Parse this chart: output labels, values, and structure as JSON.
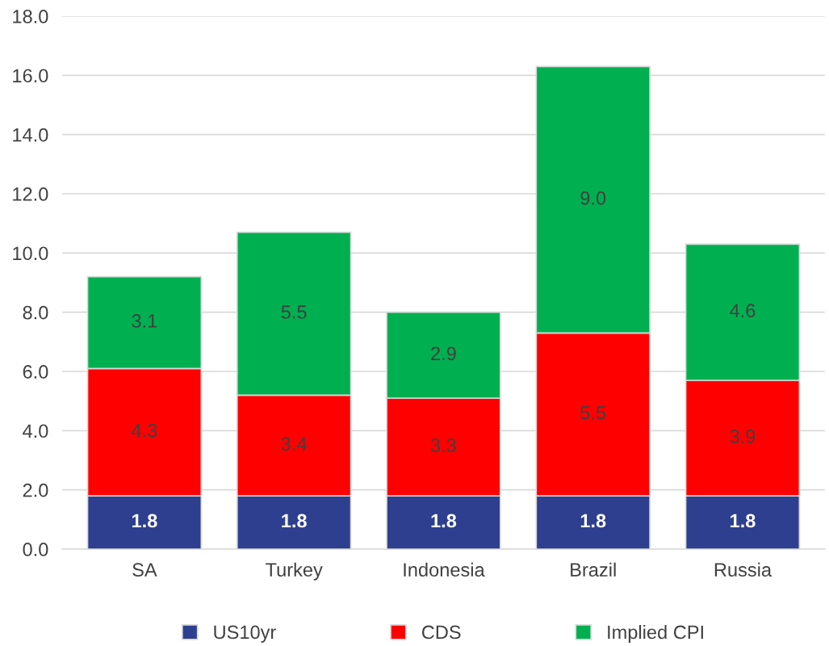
{
  "chart_data": {
    "type": "bar",
    "stacked": true,
    "categories": [
      "SA",
      "Turkey",
      "Indonesia",
      "Brazil",
      "Russia"
    ],
    "series": [
      {
        "name": "US10yr",
        "color": "#2e3f8f",
        "values": [
          1.8,
          1.8,
          1.8,
          1.8,
          1.8
        ],
        "value_labels": [
          "1.8",
          "1.8",
          "1.8",
          "1.8",
          "1.8"
        ]
      },
      {
        "name": "CDS",
        "color": "#ff0000",
        "values": [
          4.3,
          3.4,
          3.3,
          5.5,
          3.9
        ],
        "value_labels": [
          "4.3",
          "3.4",
          "3.3",
          "5.5",
          "3.9"
        ]
      },
      {
        "name": "Implied CPI",
        "color": "#00b050",
        "values": [
          3.1,
          5.5,
          2.9,
          9.0,
          4.6
        ],
        "value_labels": [
          "3.1",
          "5.5",
          "2.9",
          "9.0",
          "4.6"
        ]
      }
    ],
    "ylim": [
      0,
      18
    ],
    "yticks": [
      {
        "value": 0,
        "label": "0.0"
      },
      {
        "value": 2,
        "label": "2.0"
      },
      {
        "value": 4,
        "label": "4.0"
      },
      {
        "value": 6,
        "label": "6.0"
      },
      {
        "value": 8,
        "label": "8.0"
      },
      {
        "value": 10,
        "label": "10.0"
      },
      {
        "value": 12,
        "label": "12.0"
      },
      {
        "value": 14,
        "label": "14.0"
      },
      {
        "value": 16,
        "label": "16.0"
      },
      {
        "value": 18,
        "label": "18.0"
      }
    ],
    "grid": "y",
    "legend": "bottom"
  }
}
